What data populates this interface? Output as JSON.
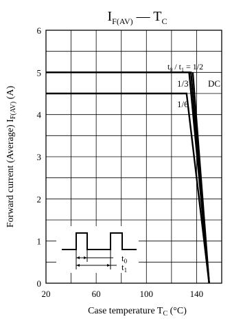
{
  "chart_data": {
    "type": "line",
    "title": {
      "base": "I",
      "sub": "F(AV)",
      "dash": "—",
      "base2": "T",
      "sub2": "C"
    },
    "xlabel": {
      "text": "Case temperature  T",
      "sub": "C",
      "unit": " (°C)"
    },
    "ylabel": {
      "text": "Forward current (Average)  I",
      "sub": "F(AV)",
      "unit": "  (A)"
    },
    "xlim": [
      20,
      160
    ],
    "ylim": [
      0,
      6
    ],
    "x_ticks": [
      20,
      60,
      100,
      140
    ],
    "y_ticks": [
      0,
      1,
      2,
      3,
      4,
      5,
      6
    ],
    "grid": true,
    "series": [
      {
        "name": "t0 / t1 = 1/2",
        "points": [
          [
            20,
            5.0
          ],
          [
            135.5,
            5.0
          ],
          [
            150,
            0
          ]
        ]
      },
      {
        "name": "1/3",
        "points": [
          [
            20,
            5.0
          ],
          [
            134,
            5.0
          ],
          [
            150,
            0
          ]
        ]
      },
      {
        "name": "DC",
        "points": [
          [
            137,
            5.0
          ],
          [
            150,
            0
          ]
        ]
      },
      {
        "name": "1/6",
        "points": [
          [
            20,
            4.5
          ],
          [
            132,
            4.5
          ],
          [
            150,
            0
          ]
        ]
      }
    ],
    "labels": {
      "half": {
        "t0": "t",
        "t0sub": "0",
        "mid": " / t",
        "t1sub": "1",
        "tail": " = 1/2"
      },
      "third": "1/3",
      "dc": "DC",
      "sixth": "1/6"
    },
    "inset": {
      "t0": {
        "base": "t",
        "sub": "0"
      },
      "t1": {
        "base": "t",
        "sub": "1"
      }
    }
  }
}
